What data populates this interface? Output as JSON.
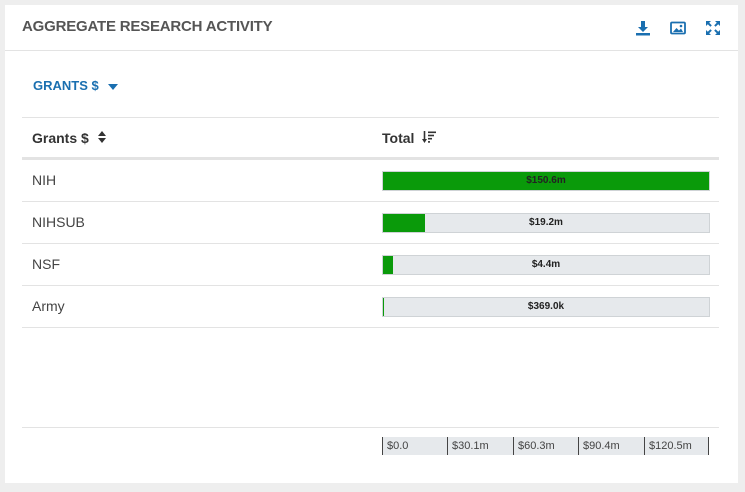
{
  "panel": {
    "title": "AGGREGATE RESEARCH ACTIVITY",
    "icons": [
      "download-icon",
      "image-icon",
      "expand-icon"
    ]
  },
  "dropdown": {
    "label": "GRANTS $"
  },
  "table": {
    "headers": {
      "name": "Grants $",
      "total": "Total"
    },
    "rows": [
      {
        "label": "NIH",
        "value_label": "$150.6m",
        "value": 150.6
      },
      {
        "label": "NIHSUB",
        "value_label": "$19.2m",
        "value": 19.2
      },
      {
        "label": "NSF",
        "value_label": "$4.4m",
        "value": 4.4
      },
      {
        "label": "Army",
        "value_label": "$369.0k",
        "value": 0.369
      }
    ],
    "max_value": 150.6
  },
  "axis": {
    "ticks": [
      "$0.0",
      "$30.1m",
      "$60.3m",
      "$90.4m",
      "$120.5m"
    ]
  },
  "colors": {
    "bar": "#0a9a0a",
    "accent": "#1a6fb0",
    "track": "#e6e9ec"
  }
}
